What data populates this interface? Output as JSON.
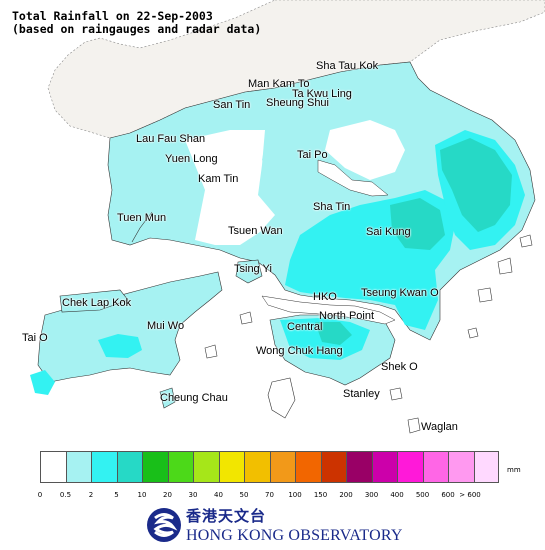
{
  "title": {
    "line1": "Total Rainfall on 22-Sep-2003",
    "line2": "(based on raingauges and radar data)"
  },
  "places": [
    {
      "id": "sha-tau-kok",
      "label": "Sha Tau Kok"
    },
    {
      "id": "man-kam-to",
      "label": "Man Kam To"
    },
    {
      "id": "ta-kwu-ling",
      "label": "Ta Kwu Ling"
    },
    {
      "id": "san-tin",
      "label": "San Tin"
    },
    {
      "id": "sheung-shui",
      "label": "Sheung Shui"
    },
    {
      "id": "lau-fau-shan",
      "label": "Lau Fau Shan"
    },
    {
      "id": "yuen-long",
      "label": "Yuen Long"
    },
    {
      "id": "tai-po",
      "label": "Tai Po"
    },
    {
      "id": "kam-tin",
      "label": "Kam Tin"
    },
    {
      "id": "sha-tin",
      "label": "Sha Tin"
    },
    {
      "id": "tuen-mun",
      "label": "Tuen Mun"
    },
    {
      "id": "sai-kung",
      "label": "Sai Kung"
    },
    {
      "id": "tsuen-wan",
      "label": "Tsuen Wan"
    },
    {
      "id": "tsing-yi",
      "label": "Tsing Yi"
    },
    {
      "id": "chek-lap-kok",
      "label": "Chek Lap Kok"
    },
    {
      "id": "hko",
      "label": "HKO"
    },
    {
      "id": "tseung-kwan-o",
      "label": "Tseung Kwan O"
    },
    {
      "id": "north-point",
      "label": "North Point"
    },
    {
      "id": "mui-wo",
      "label": "Mui Wo"
    },
    {
      "id": "central",
      "label": "Central"
    },
    {
      "id": "tai-o",
      "label": "Tai O"
    },
    {
      "id": "wong-chuk-hang",
      "label": "Wong Chuk Hang"
    },
    {
      "id": "shek-o",
      "label": "Shek O"
    },
    {
      "id": "cheung-chau",
      "label": "Cheung Chau"
    },
    {
      "id": "stanley",
      "label": "Stanley"
    },
    {
      "id": "waglan",
      "label": "Waglan"
    }
  ],
  "legend": {
    "unit": "mm",
    "thresholds": [
      "0",
      "0.5",
      "2",
      "5",
      "10",
      "20",
      "30",
      "40",
      "50",
      "70",
      "100",
      "150",
      "200",
      "300",
      "400",
      "500",
      "600",
      "> 600"
    ],
    "colors": [
      "#ffffff",
      "#a6f2f2",
      "#33f2f2",
      "#26d9c6",
      "#19bf19",
      "#4cd919",
      "#a6e619",
      "#f2e600",
      "#f2bf00",
      "#f29919",
      "#f26600",
      "#cc3300",
      "#990066",
      "#cc00aa",
      "#ff19d9",
      "#ff66e6",
      "#ff99f0",
      "#ffd9ff"
    ]
  },
  "logo": {
    "chinese": "香港天文台",
    "english": "HONG KONG OBSERVATORY",
    "color": "#1a2a8a"
  },
  "map_colors": {
    "land_unrained": "#ffffff",
    "china_land": "#f4f2ee",
    "rain_light": "#a6f2f2",
    "rain_moderate": "#33f2f2",
    "rain_heavy": "#26d9c6"
  }
}
